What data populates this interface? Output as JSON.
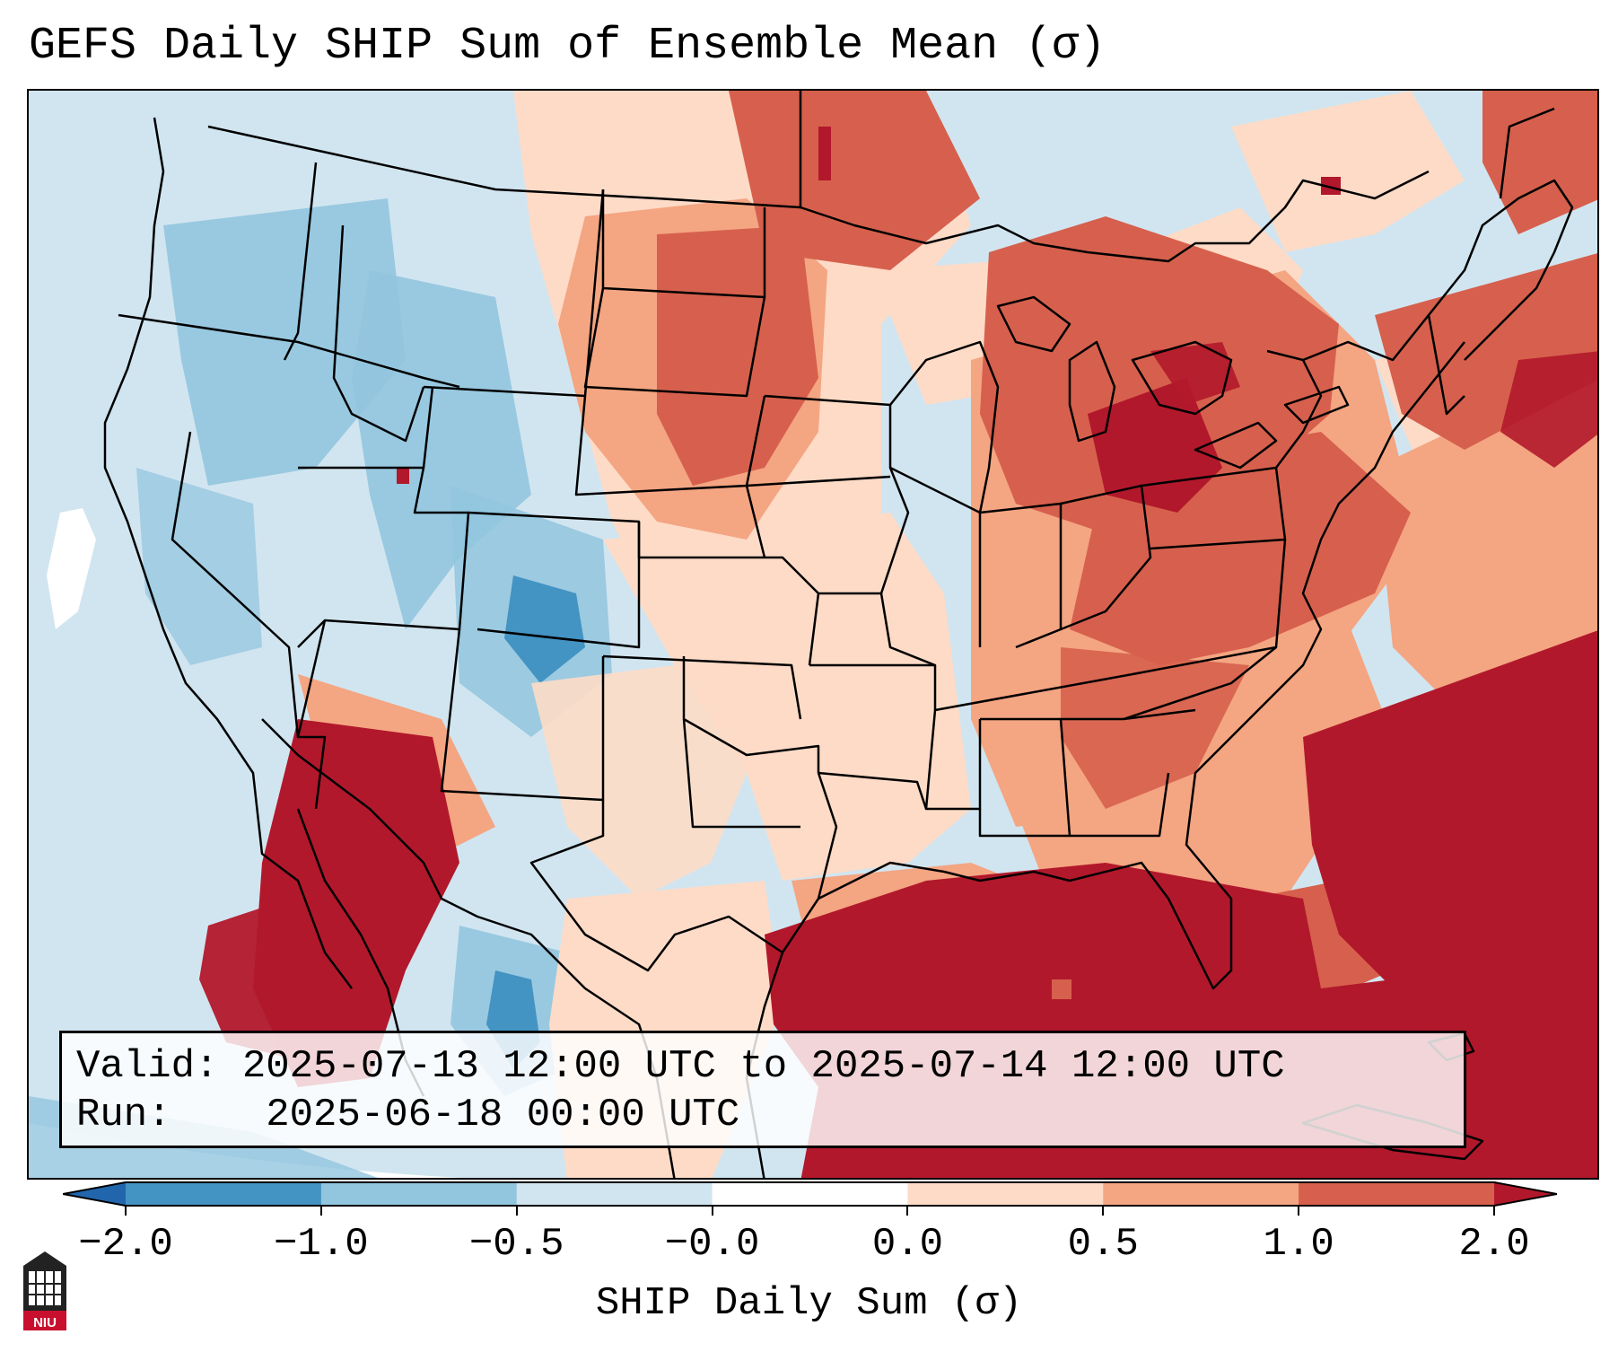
{
  "title": "GEFS Daily SHIP Sum of Ensemble Mean (σ)",
  "info": {
    "valid_label": "Valid:",
    "valid_value": "2025-07-13 12:00 UTC to 2025-07-14 12:00 UTC",
    "run_label": "Run:",
    "run_value": "2025-06-18 00:00 UTC"
  },
  "colorbar": {
    "label": "SHIP Daily Sum (σ)",
    "ticks": [
      "−2.0",
      "−1.0",
      "−0.5",
      "−0.0",
      "0.0",
      "0.5",
      "1.0",
      "2.0"
    ],
    "colors": [
      "#2166ac",
      "#4393c3",
      "#92c5de",
      "#d1e5f0",
      "#ffffff",
      "#fddbc7",
      "#f4a582",
      "#d6604d",
      "#b2182b"
    ],
    "extend": "both"
  },
  "logo": {
    "text": "NIU",
    "name": "niu-logo-icon"
  }
}
